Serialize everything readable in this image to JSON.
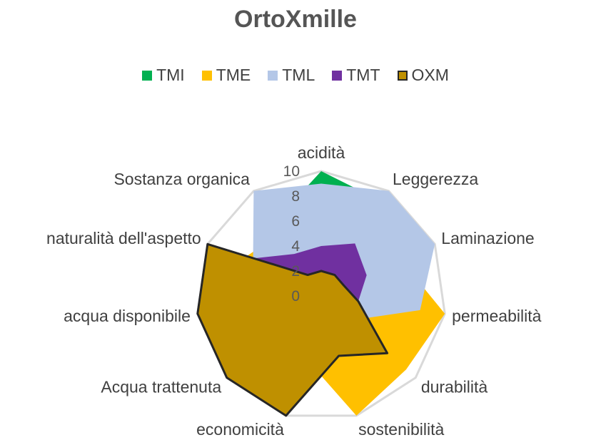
{
  "chart_data": {
    "type": "radar",
    "title": "OrtoXmille",
    "categories": [
      "acidità",
      "Leggerezza",
      "Laminazione",
      "permeabilità",
      "durabilità",
      "sostenibilità",
      "economicità",
      "Acqua trattenuta",
      "acqua disponibile",
      "naturalità dell'aspetto",
      "Sostanza organica"
    ],
    "ticks": [
      "0",
      "2",
      "4",
      "6",
      "8",
      "10"
    ],
    "rlim": [
      0,
      10
    ],
    "grid": true,
    "legend_position": "top",
    "series": [
      {
        "name": "TMI",
        "color": "#00b050",
        "values": [
          10,
          9,
          8,
          3,
          2,
          4,
          5,
          3,
          4,
          6,
          7
        ]
      },
      {
        "name": "TME",
        "color": "#ffc000",
        "values": [
          7,
          6,
          7,
          10,
          9,
          10,
          5,
          6,
          6,
          7,
          6
        ]
      },
      {
        "name": "TML",
        "color": "#b4c7e7",
        "values": [
          9,
          10,
          10,
          8,
          3,
          3,
          4,
          4,
          5,
          6,
          10
        ]
      },
      {
        "name": "TMT",
        "color": "#7030a0",
        "values": [
          4,
          5,
          4,
          3,
          7,
          3,
          4,
          6,
          7,
          7,
          4
        ]
      },
      {
        "name": "OXM",
        "color": "#bf9000",
        "stroke": "#262626",
        "values": [
          2,
          2,
          2,
          3,
          7,
          5,
          10,
          10,
          10,
          10,
          2
        ]
      }
    ]
  }
}
